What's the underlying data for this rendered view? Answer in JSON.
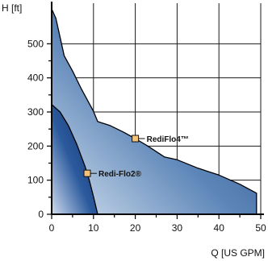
{
  "chart_data": {
    "type": "area",
    "xlabel": "Q [US GPM]",
    "ylabel": "H [ft]",
    "xlim": [
      0,
      50
    ],
    "ylim": [
      0,
      600
    ],
    "x_ticks": [
      0,
      10,
      20,
      30,
      40,
      50
    ],
    "y_ticks": [
      0,
      100,
      200,
      300,
      400,
      500
    ],
    "x_tick_labels": [
      "0",
      "10",
      "20",
      "30",
      "40",
      "50"
    ],
    "y_tick_labels": [
      "0",
      "100",
      "200",
      "300",
      "400",
      "500"
    ],
    "grid": true,
    "series": [
      {
        "name": "RediFlo4™",
        "marker": [
          20,
          222
        ],
        "points": [
          [
            0,
            602
          ],
          [
            1,
            575
          ],
          [
            3,
            465
          ],
          [
            5,
            420
          ],
          [
            7,
            370
          ],
          [
            10,
            302
          ],
          [
            11,
            272
          ],
          [
            14,
            260
          ],
          [
            17,
            242
          ],
          [
            20,
            222
          ],
          [
            23,
            200
          ],
          [
            27,
            168
          ],
          [
            30,
            160
          ],
          [
            35,
            135
          ],
          [
            40,
            115
          ],
          [
            45,
            88
          ],
          [
            49,
            62
          ],
          [
            49,
            0
          ],
          [
            0,
            0
          ]
        ],
        "colors": {
          "light": "#d3e0ef",
          "mid": "#5d86b8",
          "dark": "#1c3f7f"
        }
      },
      {
        "name": "Redi-Flo2®",
        "marker": [
          8.5,
          120
        ],
        "points": [
          [
            0,
            322
          ],
          [
            2,
            300
          ],
          [
            4,
            260
          ],
          [
            6,
            205
          ],
          [
            8,
            140
          ],
          [
            9,
            100
          ],
          [
            10,
            52
          ],
          [
            11,
            0
          ],
          [
            0,
            0
          ]
        ],
        "colors": {
          "light": "#cfdcef",
          "mid": "#2b5a9d",
          "dark": "#112f66"
        }
      }
    ]
  }
}
